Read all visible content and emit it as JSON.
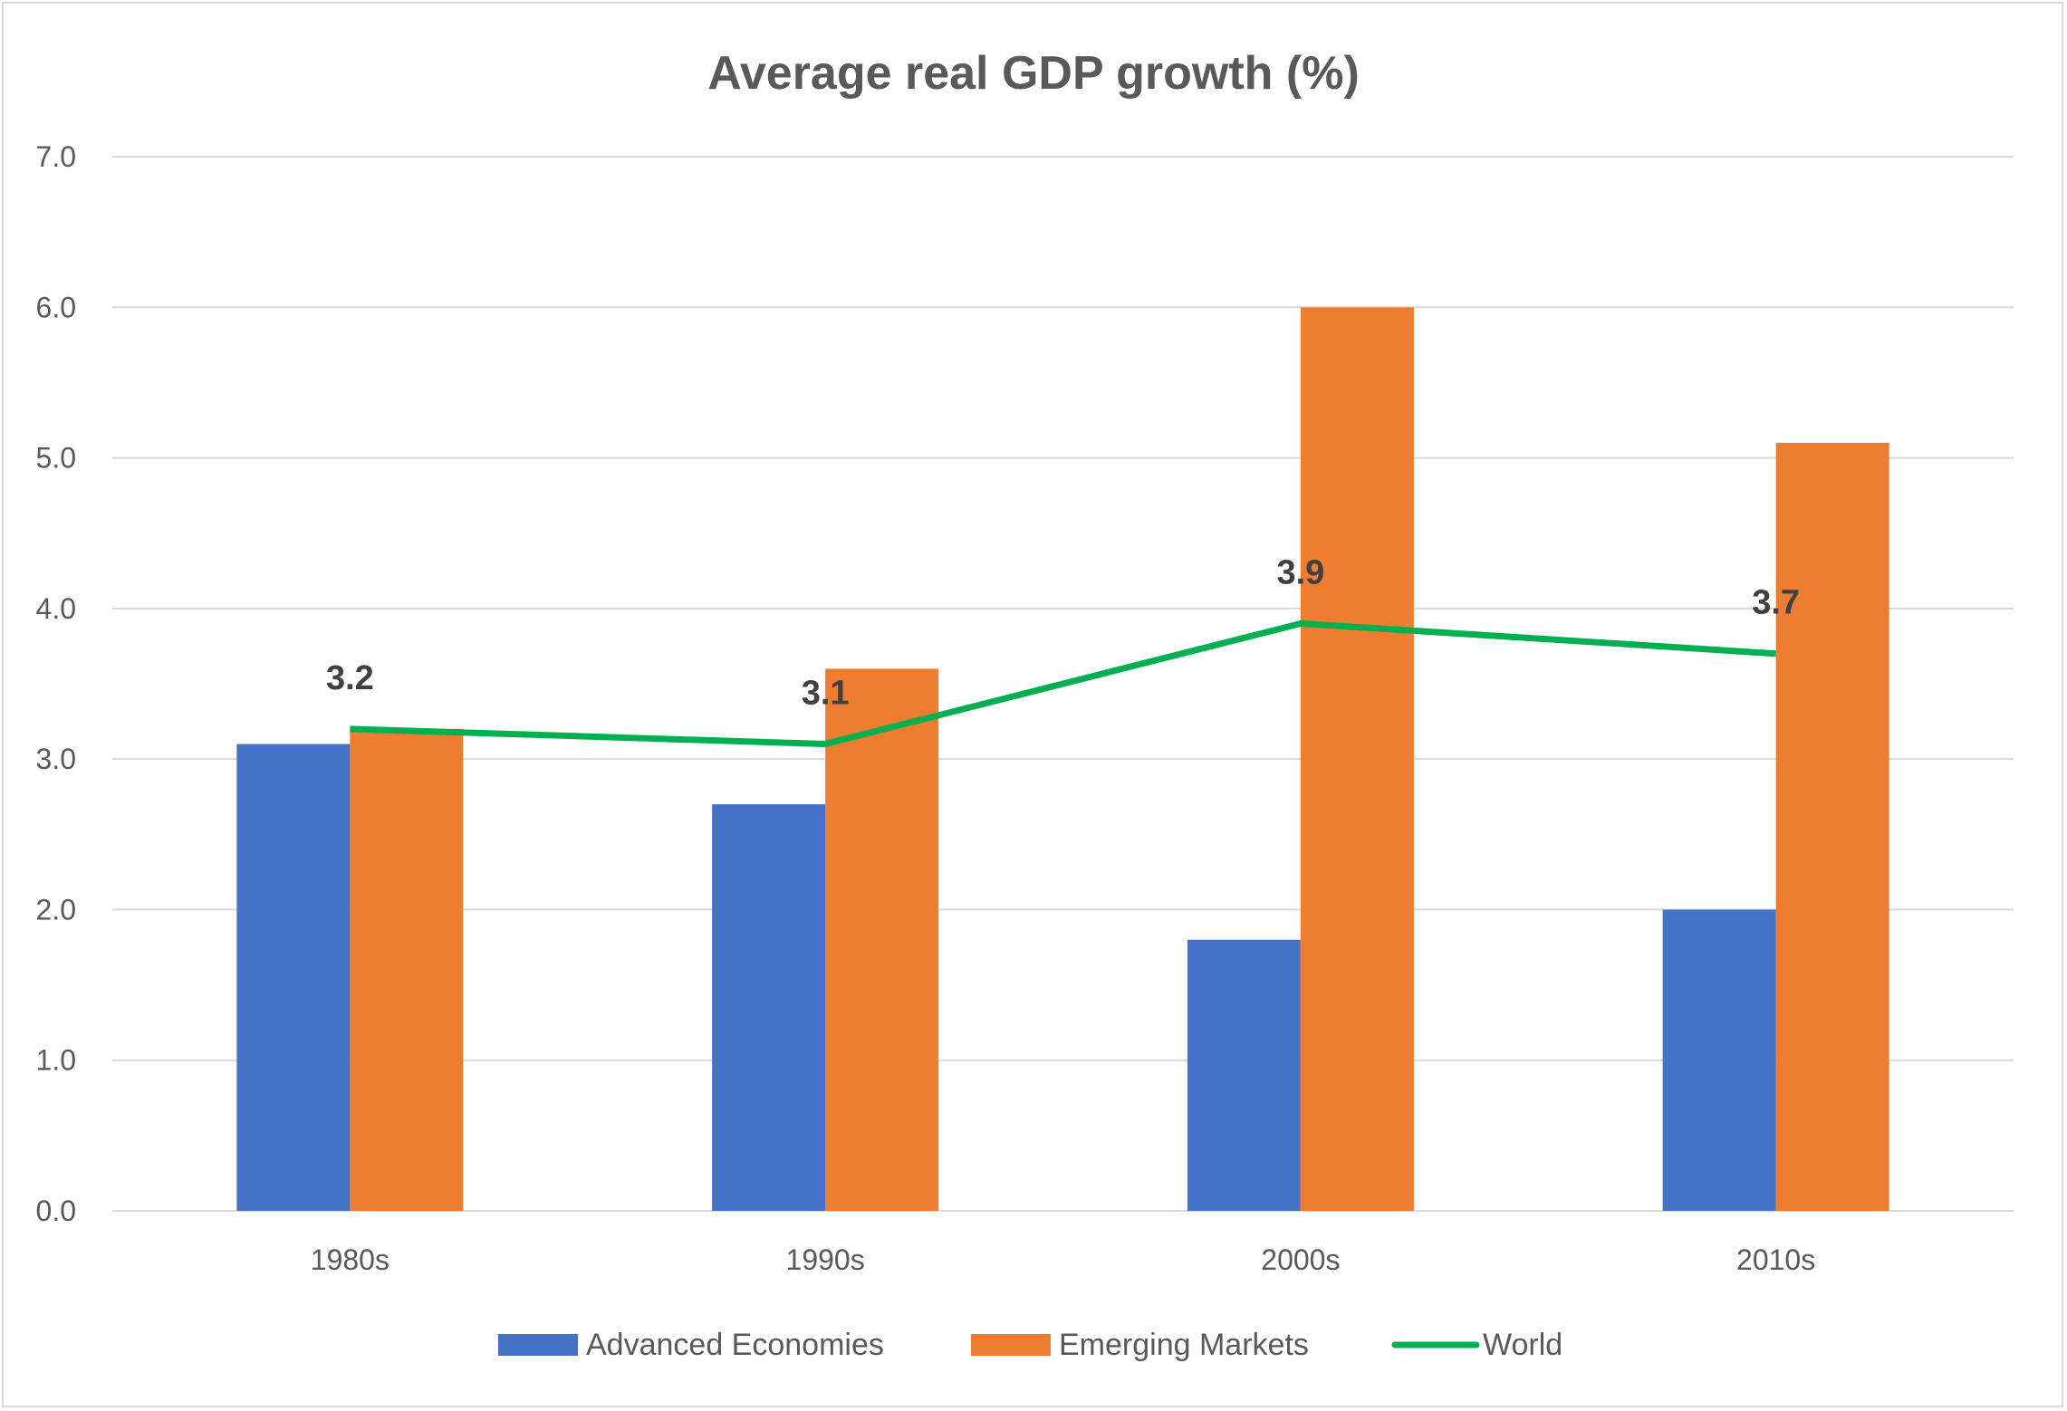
{
  "chart_data": {
    "type": "bar",
    "title": "Average real GDP growth (%)",
    "xlabel": "",
    "ylabel": "",
    "ylim": [
      0,
      7
    ],
    "yticks": [
      "0.0",
      "1.0",
      "2.0",
      "3.0",
      "4.0",
      "5.0",
      "6.0",
      "7.0"
    ],
    "grid": true,
    "legend_position": "bottom",
    "categories": [
      "1980s",
      "1990s",
      "2000s",
      "2010s"
    ],
    "series": [
      {
        "name": "Advanced Economies",
        "type": "bar",
        "color": "#4472C4",
        "values": [
          3.1,
          2.7,
          1.8,
          2.0
        ]
      },
      {
        "name": "Emerging Markets",
        "type": "bar",
        "color": "#ED7D31",
        "values": [
          3.2,
          3.6,
          6.0,
          5.1
        ]
      },
      {
        "name": "World",
        "type": "line",
        "color": "#00B050",
        "values": [
          3.2,
          3.1,
          3.9,
          3.7
        ],
        "data_labels": [
          "3.2",
          "3.1",
          "3.9",
          "3.7"
        ]
      }
    ]
  }
}
